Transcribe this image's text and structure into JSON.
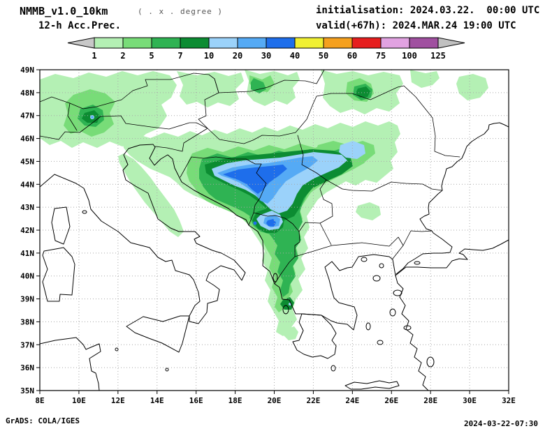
{
  "header": {
    "title": "NMMB_v1.0_10km",
    "subtitle": "( . x . degree )",
    "product": "12-h Acc.Prec.",
    "init": "initialisation: 2024.03.22.  00:00 UTC",
    "valid": "valid(+67h): 2024.MAR.24 19:00 UTC"
  },
  "colorbar": {
    "tick_labels": [
      "1",
      "2",
      "5",
      "7",
      "10",
      "20",
      "30",
      "40",
      "50",
      "60",
      "75",
      "100",
      "125"
    ],
    "arrow_left_color": "#c8c8c8",
    "arrow_right_color": "#c0c0c0",
    "segment_colors": [
      "#b4f0b4",
      "#78dc78",
      "#2fb353",
      "#0c8c32",
      "#9bd2fa",
      "#55aaf5",
      "#1e6eeb",
      "#f0f032",
      "#f5a01e",
      "#e61e1e",
      "#e1a2e1",
      "#a050a0"
    ]
  },
  "map": {
    "lat_labels": [
      "49N",
      "48N",
      "47N",
      "46N",
      "45N",
      "44N",
      "43N",
      "42N",
      "41N",
      "40N",
      "39N",
      "38N",
      "37N",
      "36N",
      "35N"
    ],
    "lon_labels": [
      "8E",
      "10E",
      "12E",
      "14E",
      "16E",
      "18E",
      "20E",
      "22E",
      "24E",
      "26E",
      "28E",
      "30E",
      "32E"
    ]
  },
  "footer": {
    "credit": "GrADS: COLA/IGES",
    "timestamp": "2024-03-22-07:30"
  }
}
